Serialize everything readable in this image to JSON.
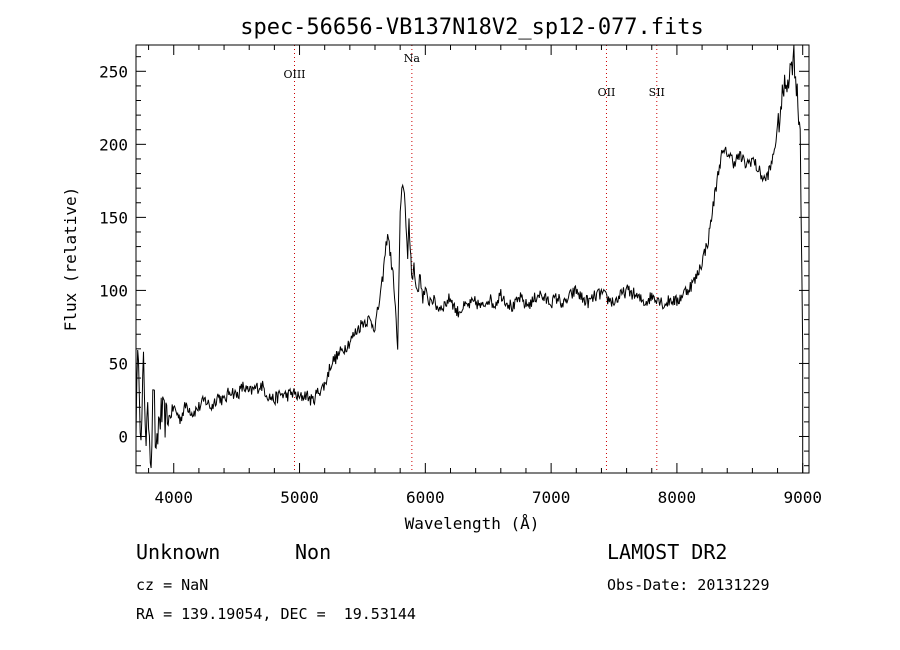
{
  "chart_data": {
    "type": "line",
    "title": "spec-56656-VB137N18V2_sp12-077.fits",
    "xlabel": "Wavelength (Å)",
    "ylabel": "Flux (relative)",
    "xlim": [
      3700,
      9050
    ],
    "ylim": [
      -25,
      268
    ],
    "xticks": [
      4000,
      5000,
      6000,
      7000,
      8000,
      9000
    ],
    "yticks": [
      0,
      50,
      100,
      150,
      200,
      250
    ],
    "grid": false,
    "lines": [
      {
        "label": "OIII",
        "x": 4960
      },
      {
        "label": "Na",
        "x": 5893
      },
      {
        "label": "OII",
        "x": 7440
      },
      {
        "label": "SII",
        "x": 7840
      }
    ],
    "series": [
      {
        "x": [
          3700,
          3720,
          3740,
          3760,
          3780,
          3800,
          3820,
          3840,
          3860,
          3880,
          3900,
          3950,
          4000,
          4050,
          4100,
          4150,
          4200,
          4250,
          4300,
          4350,
          4400,
          4450,
          4500,
          4550,
          4600,
          4650,
          4700,
          4750,
          4800,
          4850,
          4900,
          4950,
          5000,
          5050,
          5100,
          5150,
          5200,
          5250,
          5300,
          5350,
          5400,
          5450,
          5500,
          5550,
          5600,
          5650,
          5700,
          5750,
          5780,
          5800,
          5820,
          5840,
          5860,
          5870,
          5880,
          5890,
          5900,
          5910,
          5920,
          5940,
          5960,
          5980,
          6000,
          6020,
          6050,
          6100,
          6150,
          6200,
          6250,
          6300,
          6350,
          6400,
          6450,
          6500,
          6550,
          6600,
          6650,
          6700,
          6750,
          6800,
          6850,
          6900,
          6950,
          7000,
          7050,
          7100,
          7150,
          7200,
          7250,
          7300,
          7350,
          7400,
          7450,
          7500,
          7550,
          7600,
          7650,
          7700,
          7750,
          7800,
          7850,
          7900,
          7950,
          8000,
          8050,
          8100,
          8150,
          8200,
          8250,
          8300,
          8350,
          8400,
          8450,
          8500,
          8550,
          8600,
          8650,
          8700,
          8750,
          8800,
          8850,
          8900,
          8930,
          8950,
          8980,
          9000
        ],
        "values": [
          10,
          65,
          -10,
          50,
          0,
          15,
          -15,
          40,
          -20,
          10,
          15,
          10,
          20,
          12,
          22,
          16,
          20,
          25,
          20,
          28,
          24,
          32,
          28,
          34,
          30,
          33,
          35,
          28,
          25,
          29,
          28,
          30,
          26,
          29,
          24,
          31,
          35,
          50,
          55,
          60,
          65,
          72,
          78,
          80,
          75,
          100,
          140,
          105,
          60,
          150,
          175,
          160,
          120,
          145,
          130,
          115,
          108,
          118,
          105,
          100,
          110,
          95,
          100,
          92,
          95,
          88,
          90,
          95,
          85,
          88,
          90,
          92,
          88,
          95,
          90,
          98,
          92,
          88,
          95,
          90,
          92,
          98,
          94,
          92,
          95,
          90,
          96,
          100,
          94,
          92,
          96,
          98,
          94,
          92,
          96,
          100,
          98,
          94,
          92,
          96,
          95,
          90,
          94,
          92,
          98,
          102,
          108,
          120,
          135,
          165,
          192,
          195,
          188,
          192,
          186,
          190,
          182,
          175,
          185,
          210,
          238,
          250,
          262,
          240,
          210,
          60
        ]
      }
    ]
  },
  "info": {
    "object_type": "Unknown",
    "subclass": "Non",
    "survey": "LAMOST DR2",
    "cz": "cz = NaN",
    "obs_date": "Obs-Date: 20131229",
    "radec": "RA = 139.19054, DEC =  19.53144"
  }
}
